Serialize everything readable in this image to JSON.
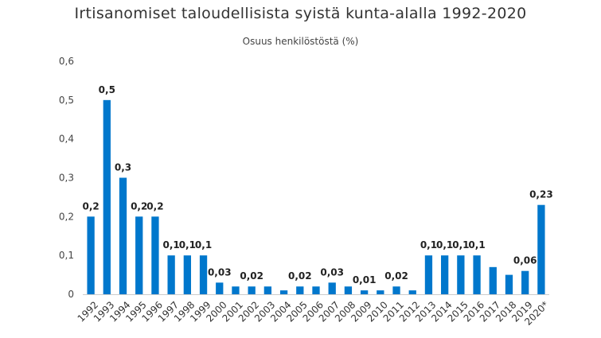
{
  "chart_data": {
    "type": "bar",
    "title": "Irtisanomiset taloudellisista syistä kunta-alalla 1992-2020",
    "subtitle": "Osuus henkilöstöstä (%)",
    "xlabel": "",
    "ylabel": "",
    "ylim": [
      0,
      0.6
    ],
    "yticks": [
      "0",
      "0,1",
      "0,2",
      "0,3",
      "0,4",
      "0,5",
      "0,6"
    ],
    "grid": false,
    "bar_color": "#0077CC",
    "categories": [
      "1992",
      "1993",
      "1994",
      "1995",
      "1996",
      "1997",
      "1998",
      "1999",
      "2000",
      "2001",
      "2002",
      "2003",
      "2004",
      "2005",
      "2006",
      "2007",
      "2008",
      "2009",
      "2010",
      "2011",
      "2012",
      "2013",
      "2014",
      "2015",
      "2016",
      "2017",
      "2018",
      "2019",
      "2020*"
    ],
    "values": [
      0.2,
      0.5,
      0.3,
      0.2,
      0.2,
      0.1,
      0.1,
      0.1,
      0.03,
      0.02,
      0.02,
      0.02,
      0.01,
      0.02,
      0.02,
      0.03,
      0.02,
      0.01,
      0.01,
      0.02,
      0.01,
      0.1,
      0.1,
      0.1,
      0.1,
      0.07,
      0.05,
      0.06,
      0.23
    ],
    "data_labels": [
      "0,2",
      "0,5",
      "0,3",
      "0,2",
      "0,2",
      "0,1",
      "0,1",
      "0,1",
      "0,03",
      "",
      "0,02",
      "",
      "",
      "0,02",
      "",
      "0,03",
      "",
      "0,01",
      "",
      "0,02",
      "",
      "0,1",
      "0,1",
      "0,1",
      "0,1",
      "",
      "",
      "0,06",
      "0,23"
    ]
  }
}
